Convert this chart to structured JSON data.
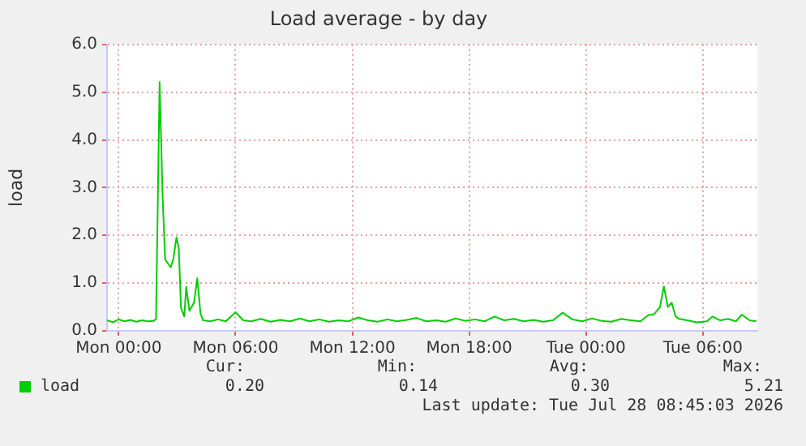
{
  "chart_data": {
    "type": "line",
    "title": "Load average - by day",
    "ylabel": "load",
    "x": [
      "2026-07-26T23:24",
      "2026-07-26T23:42",
      "2026-07-27T00:00",
      "2026-07-27T00:18",
      "2026-07-27T00:36",
      "2026-07-27T00:54",
      "2026-07-27T01:12",
      "2026-07-27T01:30",
      "2026-07-27T01:48",
      "2026-07-27T01:55",
      "2026-07-27T02:06",
      "2026-07-27T02:15",
      "2026-07-27T02:23",
      "2026-07-27T02:40",
      "2026-07-27T02:48",
      "2026-07-27T02:58",
      "2026-07-27T03:05",
      "2026-07-27T03:12",
      "2026-07-27T03:22",
      "2026-07-27T03:28",
      "2026-07-27T03:38",
      "2026-07-27T03:52",
      "2026-07-27T04:02",
      "2026-07-27T04:12",
      "2026-07-27T04:20",
      "2026-07-27T04:42",
      "2026-07-27T05:06",
      "2026-07-27T05:30",
      "2026-07-27T06:00",
      "2026-07-27T06:24",
      "2026-07-27T06:48",
      "2026-07-27T07:18",
      "2026-07-27T07:48",
      "2026-07-27T08:18",
      "2026-07-27T08:48",
      "2026-07-27T09:18",
      "2026-07-27T09:48",
      "2026-07-27T10:18",
      "2026-07-27T10:48",
      "2026-07-27T11:18",
      "2026-07-27T11:48",
      "2026-07-27T12:18",
      "2026-07-27T12:48",
      "2026-07-27T13:18",
      "2026-07-27T13:48",
      "2026-07-27T14:18",
      "2026-07-27T14:48",
      "2026-07-27T15:18",
      "2026-07-27T15:48",
      "2026-07-27T16:18",
      "2026-07-27T16:48",
      "2026-07-27T17:18",
      "2026-07-27T17:48",
      "2026-07-27T18:18",
      "2026-07-27T18:48",
      "2026-07-27T19:18",
      "2026-07-27T19:48",
      "2026-07-27T20:18",
      "2026-07-27T20:48",
      "2026-07-27T21:18",
      "2026-07-27T21:48",
      "2026-07-27T22:18",
      "2026-07-27T22:48",
      "2026-07-27T23:18",
      "2026-07-27T23:48",
      "2026-07-28T00:18",
      "2026-07-28T00:48",
      "2026-07-28T01:18",
      "2026-07-28T01:48",
      "2026-07-28T02:18",
      "2026-07-28T02:48",
      "2026-07-28T03:12",
      "2026-07-28T03:30",
      "2026-07-28T03:48",
      "2026-07-28T04:00",
      "2026-07-28T04:12",
      "2026-07-28T04:24",
      "2026-07-28T04:36",
      "2026-07-28T04:48",
      "2026-07-28T05:12",
      "2026-07-28T05:42",
      "2026-07-28T06:12",
      "2026-07-28T06:30",
      "2026-07-28T06:54",
      "2026-07-28T07:18",
      "2026-07-28T07:42",
      "2026-07-28T08:00",
      "2026-07-28T08:24",
      "2026-07-28T08:45"
    ],
    "series": [
      {
        "name": "load",
        "color": "#00cc00",
        "values": [
          0.22,
          0.18,
          0.24,
          0.2,
          0.23,
          0.19,
          0.22,
          0.2,
          0.21,
          0.25,
          5.21,
          2.87,
          1.5,
          1.33,
          1.5,
          1.96,
          1.74,
          0.48,
          0.3,
          0.92,
          0.42,
          0.59,
          1.1,
          0.37,
          0.22,
          0.2,
          0.24,
          0.2,
          0.39,
          0.22,
          0.2,
          0.25,
          0.19,
          0.23,
          0.2,
          0.26,
          0.2,
          0.24,
          0.19,
          0.22,
          0.2,
          0.28,
          0.22,
          0.19,
          0.24,
          0.2,
          0.23,
          0.27,
          0.2,
          0.22,
          0.19,
          0.26,
          0.21,
          0.24,
          0.2,
          0.3,
          0.22,
          0.25,
          0.2,
          0.23,
          0.19,
          0.22,
          0.38,
          0.24,
          0.2,
          0.26,
          0.21,
          0.19,
          0.25,
          0.22,
          0.2,
          0.33,
          0.35,
          0.5,
          0.93,
          0.5,
          0.59,
          0.3,
          0.25,
          0.22,
          0.18,
          0.2,
          0.3,
          0.22,
          0.25,
          0.2,
          0.34,
          0.22,
          0.2
        ]
      }
    ],
    "xlim": [
      "2026-07-26T23:24",
      "2026-07-28T08:48"
    ],
    "xticks": [
      {
        "value": "2026-07-27T00:00",
        "label": "Mon 00:00"
      },
      {
        "value": "2026-07-27T06:00",
        "label": "Mon 06:00"
      },
      {
        "value": "2026-07-27T12:00",
        "label": "Mon 12:00"
      },
      {
        "value": "2026-07-27T18:00",
        "label": "Mon 18:00"
      },
      {
        "value": "2026-07-28T00:00",
        "label": "Tue 00:00"
      },
      {
        "value": "2026-07-28T06:00",
        "label": "Tue 06:00"
      }
    ],
    "ylim": [
      0,
      6
    ],
    "yticks": [
      {
        "value": 0,
        "label": "0.0"
      },
      {
        "value": 1,
        "label": "1.0"
      },
      {
        "value": 2,
        "label": "2.0"
      },
      {
        "value": 3,
        "label": "3.0"
      },
      {
        "value": 4,
        "label": "4.0"
      },
      {
        "value": 5,
        "label": "5.0"
      },
      {
        "value": 6,
        "label": "6.0"
      }
    ],
    "grid": true,
    "legend": "bottom",
    "marker": "none",
    "line_style": "solid",
    "annotations": [
      "Cur:",
      "Min:",
      "Avg:",
      "Max:",
      "0.20",
      "0.14",
      "0.30",
      "5.21",
      "Last update: Tue Jul 28 08:45:03 2026"
    ]
  }
}
